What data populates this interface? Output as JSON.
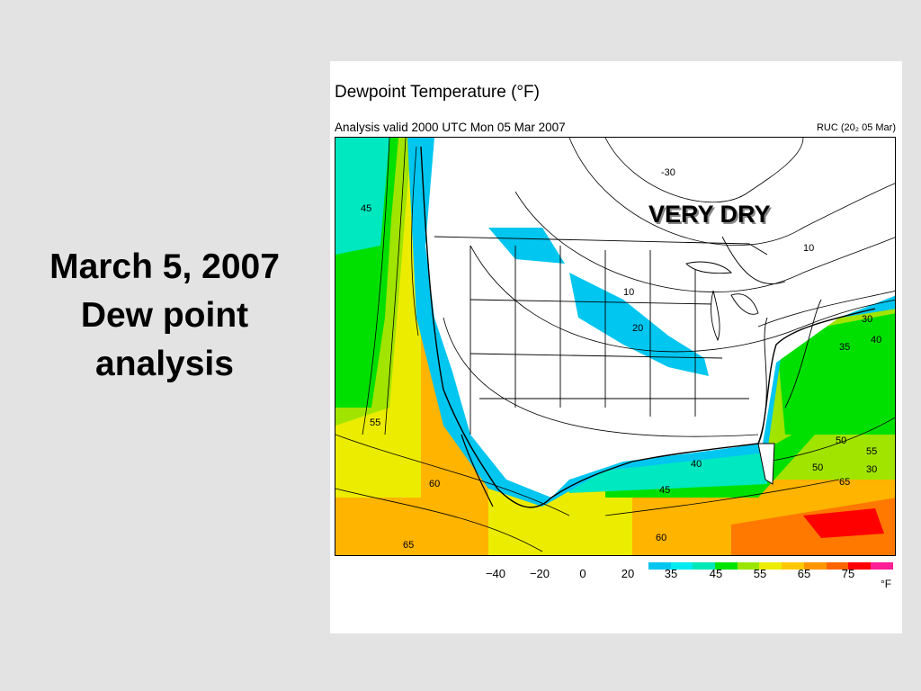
{
  "slide": {
    "title_lines": [
      "March 5, 2007",
      "Dew point",
      "analysis"
    ]
  },
  "figure": {
    "title": "Dewpoint Temperature (°F)",
    "subtitle": "Analysis valid 2000 UTC Mon 05 Mar 2007",
    "model_label": "RUC (20₂ 05 Mar)",
    "annotation": "VERY DRY",
    "legend": {
      "tick_labels": [
        "−40",
        "−20",
        "0",
        "20",
        "35",
        "45",
        "55",
        "65",
        "75"
      ],
      "unit": "°F",
      "colors": [
        "#00c6f0",
        "#00ecf0",
        "#00e8b8",
        "#00e400",
        "#9ae600",
        "#ecec00",
        "#ffc800",
        "#ff9600",
        "#ff6400",
        "#ff0000",
        "#ff1e96"
      ]
    },
    "contour_labels": [
      "-30",
      "45",
      "10",
      "10",
      "20",
      "30",
      "40",
      "35",
      "55",
      "50",
      "55",
      "60",
      "65",
      "60",
      "65",
      "45",
      "40",
      "50",
      "30"
    ],
    "palette": {
      "dry": "#ffffff",
      "cyan": "#00c6f0",
      "teal": "#00e8c0",
      "green": "#00e000",
      "lime": "#a0e400",
      "yellow": "#ecec00",
      "orange": "#ffb400",
      "dark_orange": "#ff7800",
      "red": "#ff0000"
    }
  }
}
